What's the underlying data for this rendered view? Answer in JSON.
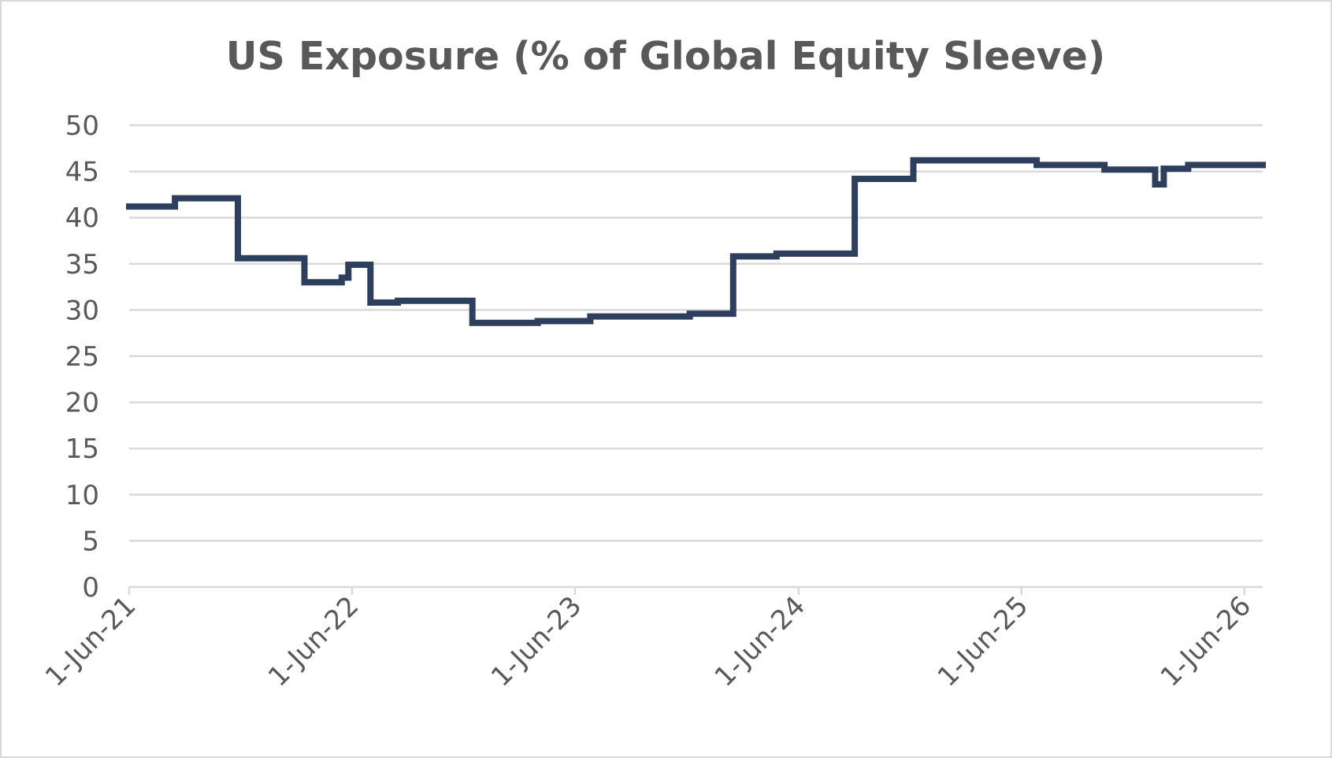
{
  "chart_data": {
    "type": "line",
    "title": "US Exposure (% of Global Equity Sleeve)",
    "xlabel": "",
    "ylabel": "",
    "ylim": [
      0,
      50
    ],
    "yticks": [
      "0",
      "5",
      "10",
      "15",
      "20",
      "25",
      "30",
      "35",
      "40",
      "45",
      "50"
    ],
    "xlim": [
      "2021-06-01",
      "2026-07-01"
    ],
    "xticks": [
      {
        "date": "2021-06-01",
        "label": "1-Jun-21"
      },
      {
        "date": "2022-06-01",
        "label": "1-Jun-22"
      },
      {
        "date": "2023-06-01",
        "label": "1-Jun-23"
      },
      {
        "date": "2024-06-01",
        "label": "1-Jun-24"
      },
      {
        "date": "2025-06-01",
        "label": "1-Jun-25"
      },
      {
        "date": "2026-06-01",
        "label": "1-Jun-26"
      }
    ],
    "gridlines": true,
    "legend": "none",
    "series": [
      {
        "step": true,
        "color": "#2e3f5e",
        "points": [
          {
            "x": "2021-06-01",
            "y": 41.2
          },
          {
            "x": "2021-08-15",
            "y": 42.1
          },
          {
            "x": "2021-11-26",
            "y": 35.6
          },
          {
            "x": "2022-03-15",
            "y": 33.0
          },
          {
            "x": "2022-05-15",
            "y": 33.5
          },
          {
            "x": "2022-05-26",
            "y": 34.9
          },
          {
            "x": "2022-07-01",
            "y": 30.8
          },
          {
            "x": "2022-08-15",
            "y": 31.0
          },
          {
            "x": "2022-12-15",
            "y": 28.6
          },
          {
            "x": "2023-04-01",
            "y": 28.8
          },
          {
            "x": "2023-06-26",
            "y": 29.3
          },
          {
            "x": "2023-12-06",
            "y": 29.6
          },
          {
            "x": "2024-02-15",
            "y": 35.8
          },
          {
            "x": "2024-04-26",
            "y": 36.1
          },
          {
            "x": "2024-09-01",
            "y": 44.2
          },
          {
            "x": "2024-12-06",
            "y": 46.2
          },
          {
            "x": "2025-06-26",
            "y": 45.7
          },
          {
            "x": "2025-10-15",
            "y": 45.2
          },
          {
            "x": "2026-01-06",
            "y": 43.6
          },
          {
            "x": "2026-01-20",
            "y": 45.3
          },
          {
            "x": "2026-03-01",
            "y": 45.7
          },
          {
            "x": "2026-07-01",
            "y": 45.7
          }
        ]
      }
    ]
  }
}
